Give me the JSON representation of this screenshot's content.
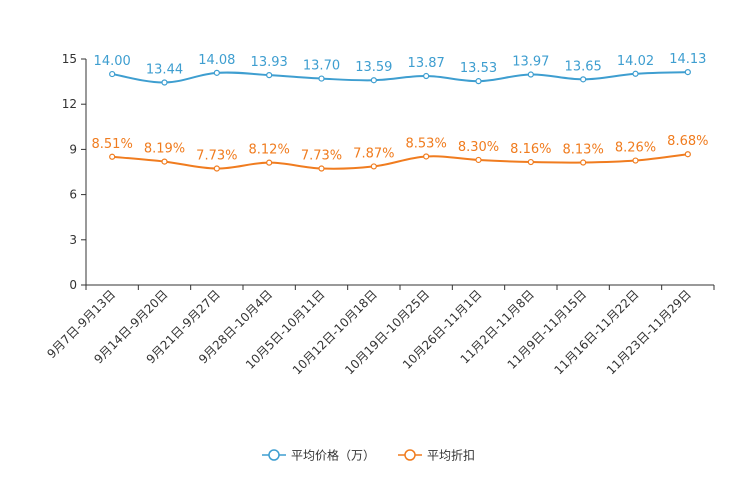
{
  "chart_data": {
    "type": "line",
    "title": "",
    "xlabel": "",
    "ylabel": "",
    "ylim": [
      0,
      15
    ],
    "yticks": [
      0,
      3,
      6,
      9,
      12,
      15
    ],
    "categories": [
      "9月7日-9月13日",
      "9月14日-9月20日",
      "9月21日-9月27日",
      "9月28日-10月4日",
      "10月5日-10月11日",
      "10月12日-10月18日",
      "10月19日-10月25日",
      "10月26日-11月1日",
      "11月2日-11月8日",
      "11月9日-11月15日",
      "11月16日-11月22日",
      "11月23日-11月29日"
    ],
    "series": [
      {
        "name": "平均价格（万）",
        "color": "#3e9ed0",
        "values": [
          14.0,
          13.44,
          14.08,
          13.93,
          13.7,
          13.59,
          13.87,
          13.53,
          13.97,
          13.65,
          14.02,
          14.13
        ],
        "labels": [
          "14.00",
          "13.44",
          "14.08",
          "13.93",
          "13.70",
          "13.59",
          "13.87",
          "13.53",
          "13.97",
          "13.65",
          "14.02",
          "14.13"
        ]
      },
      {
        "name": "平均折扣",
        "color": "#f07c1f",
        "values": [
          8.51,
          8.19,
          7.73,
          8.12,
          7.73,
          7.87,
          8.53,
          8.3,
          8.16,
          8.13,
          8.26,
          8.68
        ],
        "labels": [
          "8.51%",
          "8.19%",
          "7.73%",
          "8.12%",
          "7.73%",
          "7.87%",
          "8.53%",
          "8.30%",
          "8.16%",
          "8.13%",
          "8.26%",
          "8.68%"
        ]
      }
    ],
    "legend": "bottom-center",
    "grid": false
  }
}
